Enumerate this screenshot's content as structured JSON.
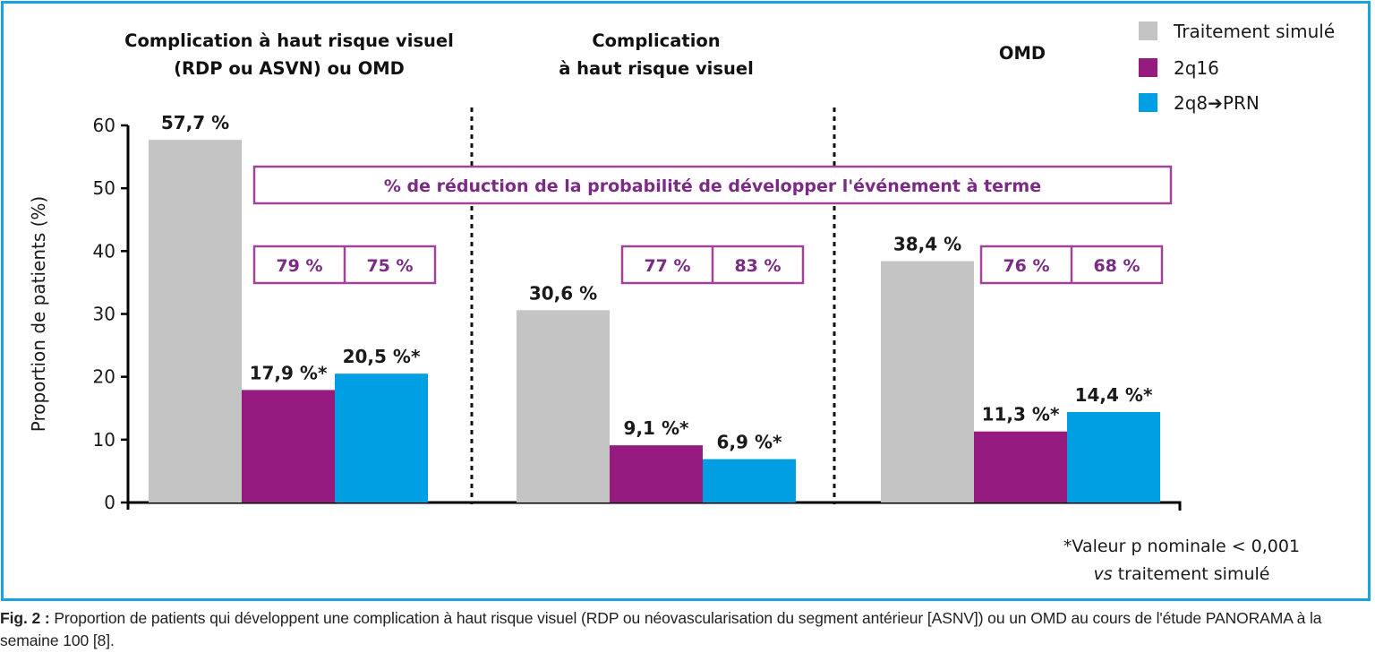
{
  "chart_data": {
    "type": "bar",
    "title": "",
    "xlabel": "",
    "ylabel": "Proportion de patients (%)",
    "ylim": [
      0,
      60
    ],
    "yticks": [
      0,
      10,
      20,
      30,
      40,
      50,
      60
    ],
    "grid": false,
    "legend_position": "top-right",
    "categories": [
      "Complication à haut risque visuel (RDP ou ASVN) ou OMD",
      "Complication à haut risque visuel",
      "OMD"
    ],
    "category_titles": [
      [
        "Complication à haut risque visuel",
        "(RDP ou ASVN) ou OMD"
      ],
      [
        "Complication",
        "à haut risque visuel"
      ],
      [
        "OMD"
      ]
    ],
    "series": [
      {
        "name": "Traitement simulé",
        "color": "#c4c4c4",
        "values": [
          57.7,
          30.6,
          38.4
        ],
        "labels": [
          "57,7 %",
          "30,6 %",
          "38,4 %"
        ]
      },
      {
        "name": "2q16",
        "color": "#951b81",
        "values": [
          17.9,
          9.1,
          11.3
        ],
        "labels": [
          "17,9 %*",
          "9,1 %*",
          "11,3 %*"
        ]
      },
      {
        "name": "2q8➔PRN",
        "color": "#009fe3",
        "values": [
          20.5,
          6.9,
          14.4
        ],
        "labels": [
          "20,5 %*",
          "6,9 %*",
          "14,4 %*"
        ]
      }
    ],
    "reduction_banner": "% de réduction de la probabilité de développer l'événement à terme",
    "reductions": [
      {
        "2q16": "79 %",
        "2q8_prn": "75 %"
      },
      {
        "2q16": "77 %",
        "2q8_prn": "83 %"
      },
      {
        "2q16": "76 %",
        "2q8_prn": "68 %"
      }
    ],
    "annotation_color": "#7b2a85"
  },
  "footnote": {
    "line1": "*Valeur p nominale < 0,001",
    "line2_italic": "vs",
    "line2_rest": " traitement simulé"
  },
  "caption": {
    "label": "Fig. 2 :",
    "text": " Proportion de patients qui développent une complication à haut risque visuel (RDP ou néovascularisation du segment antérieur [ASNV]) ou un OMD au cours de l'étude PANORAMA à la semaine 100 [8]."
  }
}
